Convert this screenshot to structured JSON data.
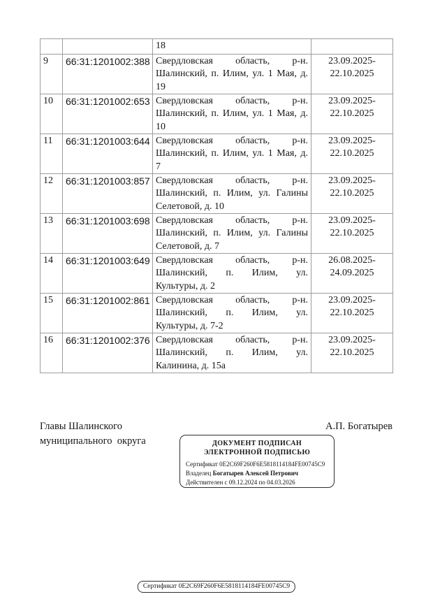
{
  "page": {
    "background_color": "#ffffff",
    "text_color": "#161616",
    "table_border_color": "#9d9d9d",
    "stamp_border_color": "#2e2e2e"
  },
  "table": {
    "continuation_row": {
      "number": "",
      "cadastral": "",
      "address_lines": [
        "18"
      ],
      "date_lines": []
    },
    "rows": [
      {
        "number": "9",
        "cadastral": "66:31:1201002:388",
        "address_lines": [
          "Свердловская область, р-н.",
          "Шалинский, п. Илим, ул. 1 Мая, д.",
          "19"
        ],
        "date_lines": [
          "23.09.2025-",
          "22.10.2025"
        ]
      },
      {
        "number": "10",
        "cadastral": "66:31:1201002:653",
        "address_lines": [
          "Свердловская область, р-н.",
          "Шалинский, п. Илим, ул. 1 Мая, д.",
          "10"
        ],
        "date_lines": [
          "23.09.2025-",
          "22.10.2025"
        ]
      },
      {
        "number": "11",
        "cadastral": "66:31:1201003:644",
        "address_lines": [
          "Свердловская область, р-н.",
          "Шалинский, п. Илим, ул. 1 Мая, д.",
          "7"
        ],
        "date_lines": [
          "23.09.2025-",
          "22.10.2025"
        ]
      },
      {
        "number": "12",
        "cadastral": "66:31:1201003:857",
        "address_lines": [
          "Свердловская область, р-н.",
          "Шалинский, п. Илим, ул. Галины",
          "Селетовой, д. 10"
        ],
        "date_lines": [
          "23.09.2025-",
          "22.10.2025"
        ]
      },
      {
        "number": "13",
        "cadastral": "66:31:1201003:698",
        "address_lines": [
          "Свердловская область, р-н.",
          "Шалинский, п. Илим, ул. Галины",
          "Селетовой, д. 7"
        ],
        "date_lines": [
          "23.09.2025-",
          "22.10.2025"
        ]
      },
      {
        "number": "14",
        "cadastral": "66:31:1201003:649",
        "address_lines": [
          "Свердловская область, р-н.",
          "Шалинский, п. Илим, ул.",
          "Культуры, д. 2"
        ],
        "date_lines": [
          "26.08.2025-",
          "24.09.2025"
        ]
      },
      {
        "number": "15",
        "cadastral": "66:31:1201002:861",
        "address_lines": [
          "Свердловская область, р-н.",
          "Шалинский, п. Илим, ул.",
          "Культуры, д. 7-2"
        ],
        "date_lines": [
          "23.09.2025-",
          "22.10.2025"
        ]
      },
      {
        "number": "16",
        "cadastral": "66:31:1201002:376",
        "address_lines": [
          "Свердловская область, р-н.",
          "Шалинский, п. Илим, ул.",
          "Калинина, д. 15а"
        ],
        "date_lines": [
          "23.09.2025-",
          "22.10.2025"
        ]
      }
    ]
  },
  "signature": {
    "left_line1": "Главы Шалинского",
    "left_line2": "муниципального  округа",
    "right": "А.П. Богатырев"
  },
  "stamp": {
    "title_line1": "ДОКУМЕНТ ПОДПИСАН",
    "title_line2": "ЭЛЕКТРОННОЙ ПОДПИСЬЮ",
    "certificate_label": "Сертификат",
    "certificate_value": "0E2C69F260F6E5818114184FE00745C9",
    "owner_label": "Владелец",
    "owner_value": "Богатырев Алексей Петрович",
    "validity": "Действителен с 09.12.2024 по 04.03.2026"
  },
  "footer": {
    "certificate_text": "Сертификат 0E2C69F260F6E5818114184FE00745C9"
  }
}
